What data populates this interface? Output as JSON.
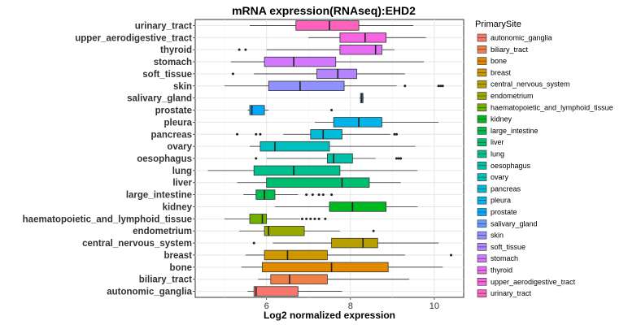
{
  "chart_data": {
    "type": "boxplot",
    "orientation": "horizontal",
    "title": "mRNA expression(RNAseq):EHD2",
    "xlabel": "Log2 normalized expression",
    "ylabel": "",
    "xlim": [
      4.3,
      10.7
    ],
    "xticks": [
      6,
      8,
      10
    ],
    "xtick_labels": [
      "6",
      "8",
      "10"
    ],
    "grid": true,
    "legend_title": "PrimarySite",
    "legend_position": "right",
    "categories": [
      {
        "name": "autonomic_ganglia",
        "color": "#F8766D",
        "whisker_low": 5.55,
        "q1": 5.7,
        "median": 5.75,
        "q3": 6.75,
        "whisker_high": 7.8,
        "outliers": []
      },
      {
        "name": "biliary_tract",
        "color": "#EF7F49",
        "whisker_low": 5.8,
        "q1": 6.1,
        "median": 6.55,
        "q3": 7.45,
        "whisker_high": 9.4,
        "outliers": []
      },
      {
        "name": "bone",
        "color": "#E18A00",
        "whisker_low": 5.4,
        "q1": 5.9,
        "median": 7.55,
        "q3": 8.9,
        "whisker_high": 10.2,
        "outliers": []
      },
      {
        "name": "breast",
        "color": "#CE9700",
        "whisker_low": 5.5,
        "q1": 5.95,
        "median": 6.5,
        "q3": 7.45,
        "whisker_high": 9.3,
        "outliers": [
          10.4
        ]
      },
      {
        "name": "central_nervous_system",
        "color": "#B79F00",
        "whisker_low": 6.15,
        "q1": 7.55,
        "median": 8.3,
        "q3": 8.65,
        "whisker_high": 10.1,
        "outliers": [
          5.7
        ]
      },
      {
        "name": "endometrium",
        "color": "#99A800",
        "whisker_low": 5.35,
        "q1": 5.95,
        "median": 6.05,
        "q3": 6.9,
        "whisker_high": 7.75,
        "outliers": [
          8.55
        ]
      },
      {
        "name": "haematopoietic_and_lymphoid_tissue",
        "color": "#6FB000",
        "whisker_low": 5.0,
        "q1": 5.6,
        "median": 5.9,
        "q3": 6.0,
        "whisker_high": 6.8,
        "outliers": [
          6.85,
          6.95,
          7.05,
          7.15,
          7.25,
          7.4
        ]
      },
      {
        "name": "kidney",
        "color": "#00B81F",
        "whisker_low": 6.2,
        "q1": 7.5,
        "median": 8.05,
        "q3": 8.85,
        "whisker_high": 9.6,
        "outliers": []
      },
      {
        "name": "large_intestine",
        "color": "#00BB4E",
        "whisker_low": 5.45,
        "q1": 5.75,
        "median": 5.95,
        "q3": 6.2,
        "whisker_high": 6.75,
        "outliers": [
          6.95,
          7.1,
          7.25,
          7.35,
          7.55
        ]
      },
      {
        "name": "liver",
        "color": "#00BE70",
        "whisker_low": 5.3,
        "q1": 6.0,
        "median": 7.8,
        "q3": 8.45,
        "whisker_high": 9.2,
        "outliers": []
      },
      {
        "name": "lung",
        "color": "#00C08D",
        "whisker_low": 4.6,
        "q1": 5.7,
        "median": 6.65,
        "q3": 7.75,
        "whisker_high": 9.6,
        "outliers": []
      },
      {
        "name": "oesophagus",
        "color": "#00C1A7",
        "whisker_low": 6.0,
        "q1": 7.45,
        "median": 7.6,
        "q3": 8.05,
        "whisker_high": 8.6,
        "outliers": [
          5.75,
          9.1,
          9.15,
          9.2
        ]
      },
      {
        "name": "ovary",
        "color": "#00BFBF",
        "whisker_low": 5.6,
        "q1": 5.85,
        "median": 6.2,
        "q3": 7.5,
        "whisker_high": 9.55,
        "outliers": []
      },
      {
        "name": "pancreas",
        "color": "#00BBD5",
        "whisker_low": 6.4,
        "q1": 7.05,
        "median": 7.35,
        "q3": 7.8,
        "whisker_high": 8.95,
        "outliers": [
          5.3,
          5.75,
          5.85,
          9.05,
          9.1
        ]
      },
      {
        "name": "pleura",
        "color": "#00B3E9",
        "whisker_low": 7.15,
        "q1": 7.6,
        "median": 8.2,
        "q3": 8.75,
        "whisker_high": 10.1,
        "outliers": []
      },
      {
        "name": "prostate",
        "color": "#00A9FA",
        "whisker_low": 5.55,
        "q1": 5.6,
        "median": 5.65,
        "q3": 5.95,
        "whisker_high": 6.05,
        "outliers": [
          7.55
        ]
      },
      {
        "name": "salivary_gland",
        "color": "#619CFF",
        "whisker_low": 8.22,
        "q1": 8.24,
        "median": 8.27,
        "q3": 8.3,
        "whisker_high": 8.32,
        "outliers": []
      },
      {
        "name": "skin",
        "color": "#8F91FF",
        "whisker_low": 5.0,
        "q1": 6.05,
        "median": 6.8,
        "q3": 7.85,
        "whisker_high": 9.1,
        "outliers": [
          9.3,
          10.1,
          10.15,
          10.2
        ]
      },
      {
        "name": "soft_tissue",
        "color": "#B385FF",
        "whisker_low": 5.7,
        "q1": 7.2,
        "median": 7.7,
        "q3": 8.15,
        "whisker_high": 9.3,
        "outliers": [
          5.2
        ]
      },
      {
        "name": "stomach",
        "color": "#D078FF",
        "whisker_low": 5.15,
        "q1": 5.95,
        "median": 6.65,
        "q3": 7.65,
        "whisker_high": 9.75,
        "outliers": []
      },
      {
        "name": "thyroid",
        "color": "#E76BF3",
        "whisker_low": 6.0,
        "q1": 7.75,
        "median": 8.6,
        "q3": 8.75,
        "whisker_high": 9.05,
        "outliers": [
          5.35,
          5.5
        ]
      },
      {
        "name": "upper_aerodigestive_tract",
        "color": "#F763E0",
        "whisker_low": 7.0,
        "q1": 7.75,
        "median": 8.35,
        "q3": 8.85,
        "whisker_high": 9.8,
        "outliers": []
      },
      {
        "name": "urinary_tract",
        "color": "#FF62BC",
        "whisker_low": 5.6,
        "q1": 6.7,
        "median": 7.5,
        "q3": 8.2,
        "whisker_high": 9.5,
        "outliers": []
      }
    ]
  }
}
